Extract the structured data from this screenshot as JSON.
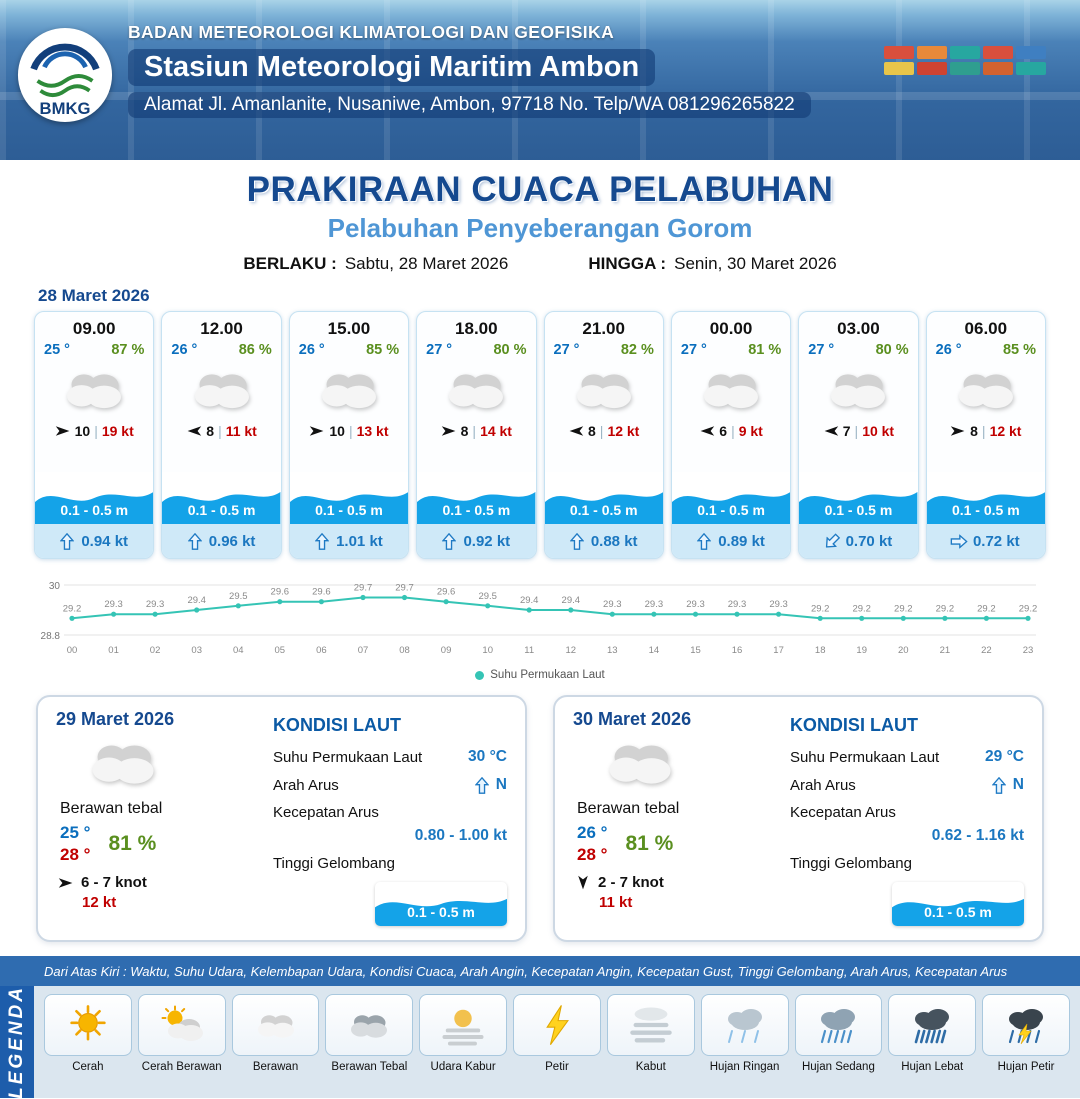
{
  "header": {
    "org": "BADAN METEOROLOGI KLIMATOLOGI DAN GEOFISIKA",
    "station": "Stasiun Meteorologi Maritim Ambon",
    "address": "Alamat Jl. Amanlanite, Nusaniwe, Ambon, 97718   No. Telp/WA  081296265822",
    "logo_text": "BMKG"
  },
  "title": {
    "main": "PRAKIRAAN CUACA PELABUHAN",
    "sub": "Pelabuhan Penyeberangan Gorom",
    "valid_from_label": "BERLAKU :",
    "valid_from": "Sabtu, 28 Maret 2026",
    "valid_to_label": "HINGGA :",
    "valid_to": "Senin, 30 Maret 2026"
  },
  "forecast": {
    "date_label": "28 Maret 2026",
    "cards": [
      {
        "time": "09.00",
        "temp": "25 °",
        "rh": "87 %",
        "weather_icon": "cloud",
        "wind_dir": "right",
        "wind_speed": "10",
        "gust": "19 kt",
        "wave": "0.1 - 0.5 m",
        "current_dir": "up",
        "current_speed": "0.94 kt"
      },
      {
        "time": "12.00",
        "temp": "26 °",
        "rh": "86 %",
        "weather_icon": "cloud",
        "wind_dir": "left",
        "wind_speed": "8",
        "gust": "11 kt",
        "wave": "0.1 - 0.5 m",
        "current_dir": "up",
        "current_speed": "0.96 kt"
      },
      {
        "time": "15.00",
        "temp": "26 °",
        "rh": "85 %",
        "weather_icon": "cloud",
        "wind_dir": "right",
        "wind_speed": "10",
        "gust": "13 kt",
        "wave": "0.1 - 0.5 m",
        "current_dir": "up",
        "current_speed": "1.01 kt"
      },
      {
        "time": "18.00",
        "temp": "27 °",
        "rh": "80 %",
        "weather_icon": "cloud",
        "wind_dir": "right",
        "wind_speed": "8",
        "gust": "14 kt",
        "wave": "0.1 - 0.5 m",
        "current_dir": "up",
        "current_speed": "0.92 kt"
      },
      {
        "time": "21.00",
        "temp": "27 °",
        "rh": "82 %",
        "weather_icon": "cloud",
        "wind_dir": "left",
        "wind_speed": "8",
        "gust": "12 kt",
        "wave": "0.1 - 0.5 m",
        "current_dir": "up",
        "current_speed": "0.88 kt"
      },
      {
        "time": "00.00",
        "temp": "27 °",
        "rh": "81 %",
        "weather_icon": "cloud",
        "wind_dir": "left",
        "wind_speed": "6",
        "gust": "9 kt",
        "wave": "0.1 - 0.5 m",
        "current_dir": "up",
        "current_speed": "0.89 kt"
      },
      {
        "time": "03.00",
        "temp": "27 °",
        "rh": "80 %",
        "weather_icon": "cloud",
        "wind_dir": "left",
        "wind_speed": "7",
        "gust": "10 kt",
        "wave": "0.1 - 0.5 m",
        "current_dir": "sw",
        "current_speed": "0.70 kt"
      },
      {
        "time": "06.00",
        "temp": "26 °",
        "rh": "85 %",
        "weather_icon": "cloud",
        "wind_dir": "right",
        "wind_speed": "8",
        "gust": "12 kt",
        "wave": "0.1 - 0.5 m",
        "current_dir": "right",
        "current_speed": "0.72 kt"
      }
    ]
  },
  "chart_data": {
    "type": "line",
    "x": [
      "00",
      "01",
      "02",
      "03",
      "04",
      "05",
      "06",
      "07",
      "08",
      "09",
      "10",
      "11",
      "12",
      "13",
      "14",
      "15",
      "16",
      "17",
      "18",
      "19",
      "20",
      "21",
      "22",
      "23"
    ],
    "series": [
      {
        "name": "Suhu Permukaan Laut",
        "values": [
          29.2,
          29.3,
          29.3,
          29.4,
          29.5,
          29.6,
          29.6,
          29.7,
          29.7,
          29.6,
          29.5,
          29.4,
          29.4,
          29.3,
          29.3,
          29.3,
          29.3,
          29.3,
          29.2,
          29.2,
          29.2,
          29.2,
          29.2,
          29.2
        ]
      }
    ],
    "ylim": [
      28.8,
      30
    ],
    "yticks": [
      "30",
      "28.8"
    ],
    "line_color": "#35c4b5",
    "legend_position": "bottom",
    "grid": true
  },
  "sea_labels": {
    "title": "KONDISI LAUT",
    "sst": "Suhu Permukaan Laut",
    "current_dir": "Arah Arus",
    "current_speed": "Kecepatan Arus",
    "wave": "Tinggi Gelombang"
  },
  "days": [
    {
      "date": "29 Maret 2026",
      "condition": "Berawan tebal",
      "weather_icon": "cloud",
      "temp_min": "25 °",
      "temp_max": "28 °",
      "rh": "81 %",
      "wind_dir": "right",
      "wind_speed": "6 - 7 knot",
      "gust": "12 kt",
      "sst": "30 °C",
      "current_compass": "N",
      "current_dir": "up",
      "current_speed": "0.80 - 1.00 kt",
      "wave": "0.1 - 0.5 m"
    },
    {
      "date": "30 Maret 2026",
      "condition": "Berawan tebal",
      "weather_icon": "cloud",
      "temp_min": "26 °",
      "temp_max": "28 °",
      "rh": "81 %",
      "wind_dir": "down",
      "wind_speed": "2 - 7 knot",
      "gust": "11 kt",
      "sst": "29 °C",
      "current_compass": "N",
      "current_dir": "up",
      "current_speed": "0.62 - 1.16 kt",
      "wave": "0.1 - 0.5 m"
    }
  ],
  "legend": {
    "caption": "Dari Atas Kiri : Waktu, Suhu Udara, Kelembapan Udara, Kondisi Cuaca, Arah Angin, Kecepatan Angin, Kecepatan Gust, Tinggi Gelombang, Arah Arus, Kecepatan Arus",
    "band_label": "LEGENDA",
    "items": [
      {
        "label": "Cerah",
        "icon": "sun"
      },
      {
        "label": "Cerah Berawan",
        "icon": "sun-cloud"
      },
      {
        "label": "Berawan",
        "icon": "cloud"
      },
      {
        "label": "Berawan Tebal",
        "icon": "cloud-thick"
      },
      {
        "label": "Udara Kabur",
        "icon": "haze"
      },
      {
        "label": "Petir",
        "icon": "lightning"
      },
      {
        "label": "Kabut",
        "icon": "fog"
      },
      {
        "label": "Hujan Ringan",
        "icon": "rain-light"
      },
      {
        "label": "Hujan Sedang",
        "icon": "rain-medium"
      },
      {
        "label": "Hujan Lebat",
        "icon": "rain-heavy"
      },
      {
        "label": "Hujan Petir",
        "icon": "thunderstorm"
      }
    ]
  },
  "colors": {
    "navy": "#15498f",
    "sub_blue": "#4f96d5",
    "temp_blue": "#0a6ebd",
    "humidity_green": "#5a8f1f",
    "gust_red": "#c00000",
    "wave_blue": "#14a3e8",
    "chart_teal": "#35c4b5",
    "caption_bar": "#2f6cb0",
    "legend_band": "#1d5dab"
  }
}
